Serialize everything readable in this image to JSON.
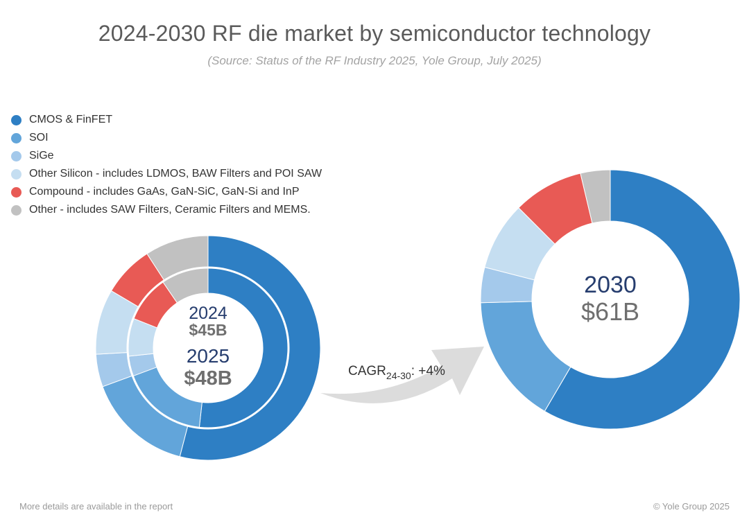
{
  "chart_data": {
    "type": "pie",
    "title": "2024-2030 RF die market by semiconductor technology",
    "subtitle": "(Source: Status of the RF Industry 2025, Yole Group, July 2025)",
    "unit": "$B",
    "categories": [
      "CMOS & FinFET",
      "SOI",
      "SiGe",
      "Other Silicon - includes LDMOS, BAW Filters and POI SAW",
      "Compound - includes GaAs, GaN-SiC, GaN-Si and InP",
      "Other - includes SAW Filters, Ceramic Filters and MEMS."
    ],
    "colors": [
      "#2e7fc4",
      "#62a5da",
      "#a4c9eb",
      "#c5def1",
      "#e85a55",
      "#c1c1c1"
    ],
    "series": [
      {
        "name": "2024",
        "total_label": "$45B",
        "values": [
          0.5175,
          0.1755,
          0.0405,
          0.0765,
          0.0945,
          0.0955
        ]
      },
      {
        "name": "2025",
        "total_label": "$48B",
        "values": [
          0.5405,
          0.1535,
          0.047,
          0.094,
          0.0735,
          0.0915
        ]
      },
      {
        "name": "2030",
        "total_label": "$61B",
        "values": [
          0.5845,
          0.1615,
          0.044,
          0.085,
          0.088,
          0.037
        ]
      }
    ],
    "annotation": {
      "prefix": "CAGR",
      "subscript": "24-30",
      "suffix": ": +4%"
    }
  },
  "footer": {
    "left": "More details are available in the report",
    "right": "© Yole Group 2025"
  }
}
